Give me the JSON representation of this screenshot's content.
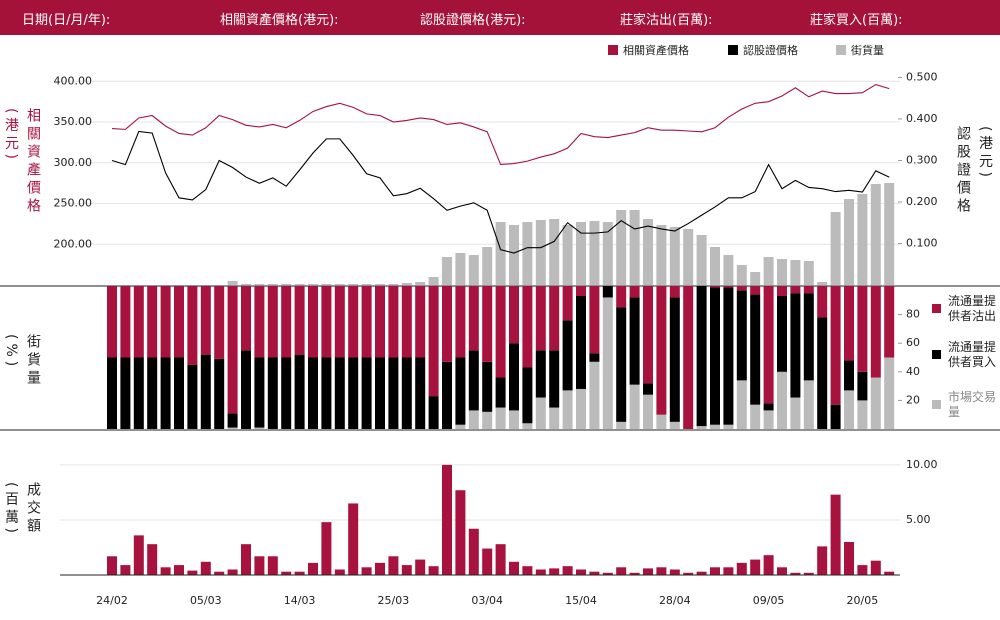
{
  "header": [
    "日期(日/月/年):",
    "相關資產價格(港元):",
    "認股證價格(港元):",
    "莊家沽出(百萬):",
    "莊家買入(百萬):"
  ],
  "chart_data": [
    {
      "type": "line",
      "y_label": "相關資產價格(港元)",
      "y2_label": "認股證價格(港元)",
      "ylim": [
        150,
        420
      ],
      "yticks": [
        {
          "value": 200,
          "label": "200.00"
        },
        {
          "value": 250,
          "label": "250.00"
        },
        {
          "value": 300,
          "label": "300.00"
        },
        {
          "value": 350,
          "label": "350.00"
        },
        {
          "value": 400,
          "label": "400.00"
        }
      ],
      "y2lim": [
        0,
        0.53
      ],
      "y2ticks": [
        {
          "value": 0.1,
          "label": "0.100"
        },
        {
          "value": 0.2,
          "label": "0.200"
        },
        {
          "value": 0.3,
          "label": "0.300"
        },
        {
          "value": 0.4,
          "label": "0.400"
        },
        {
          "value": 0.5,
          "label": "0.500"
        }
      ],
      "y3lim": [
        0,
        220
      ],
      "grid": true,
      "series": [
        {
          "name": "相關資產價格",
          "color": "#a8123e",
          "axis": "y",
          "values": [
            342,
            341,
            355,
            358,
            345,
            336,
            334,
            343,
            358,
            353,
            346,
            344,
            347,
            343,
            352,
            363,
            369,
            373,
            368,
            360,
            358,
            350,
            352,
            355,
            353,
            347,
            349,
            344,
            338,
            298,
            299,
            302,
            307,
            311,
            318,
            336,
            332,
            331,
            334,
            337,
            343,
            340,
            340,
            339,
            338,
            343,
            356,
            366,
            373,
            375,
            382,
            392,
            381,
            388,
            385,
            385,
            386,
            396,
            391
          ]
        },
        {
          "name": "認股證價格",
          "color": "#000000",
          "axis": "y2",
          "values": [
            0.3,
            0.29,
            0.37,
            0.366,
            0.27,
            0.21,
            0.205,
            0.23,
            0.3,
            0.283,
            0.26,
            0.245,
            0.258,
            0.238,
            0.277,
            0.318,
            0.352,
            0.352,
            0.312,
            0.268,
            0.258,
            0.215,
            0.22,
            0.233,
            0.208,
            0.18,
            0.19,
            0.198,
            0.18,
            0.085,
            0.077,
            0.09,
            0.09,
            0.105,
            0.15,
            0.125,
            0.125,
            0.128,
            0.155,
            0.135,
            0.142,
            0.135,
            0.13,
            0.148,
            0.168,
            0.188,
            0.21,
            0.21,
            0.225,
            0.29,
            0.232,
            0.252,
            0.235,
            0.232,
            0.225,
            0.228,
            0.224,
            0.275,
            0.26
          ]
        },
        {
          "name": "街貨量",
          "color": "#bbbbbb",
          "axis": "y3",
          "values": [
            0,
            0,
            0,
            0,
            0,
            0,
            0,
            0,
            0,
            4,
            1,
            1,
            1,
            1,
            1,
            1,
            1,
            1,
            1,
            1,
            1,
            1,
            2,
            3,
            8,
            28,
            32,
            30,
            38,
            63,
            60,
            63,
            65,
            66,
            60,
            63,
            64,
            63,
            75,
            75,
            66,
            60,
            58,
            56,
            50,
            38,
            30,
            20,
            13,
            28,
            26,
            25,
            24,
            3,
            73,
            86,
            91,
            101,
            102
          ]
        }
      ]
    },
    {
      "type": "stacked_bar",
      "y_label": "街貨量(%)",
      "ylim": [
        0,
        100
      ],
      "yticks": [
        20,
        40,
        60,
        80
      ],
      "series": [
        {
          "name": "流通量提供者沽出",
          "color": "#a8123e",
          "values": [
            50,
            50,
            50,
            50,
            50,
            50,
            55,
            48,
            51,
            89,
            45,
            50,
            50,
            50,
            48,
            50,
            50,
            50,
            50,
            50,
            50,
            50,
            50,
            50,
            77,
            53,
            50,
            45,
            53,
            64,
            40,
            57,
            45,
            45,
            24,
            7,
            47,
            0,
            15,
            8,
            68,
            90,
            8,
            100,
            0,
            1,
            1,
            3,
            6,
            82,
            7,
            5,
            5,
            22,
            83,
            52,
            60,
            64,
            50
          ]
        },
        {
          "name": "流通量提供者買入",
          "color": "#000000",
          "values": [
            50,
            50,
            50,
            50,
            50,
            50,
            45,
            52,
            49,
            10,
            55,
            49,
            50,
            50,
            52,
            50,
            50,
            50,
            50,
            50,
            50,
            50,
            50,
            50,
            23,
            47,
            47,
            42,
            35,
            21,
            47,
            39,
            33,
            40,
            49,
            65,
            6,
            8,
            80,
            61,
            8,
            0,
            87,
            0,
            98,
            96,
            96,
            63,
            77,
            5,
            53,
            73,
            61,
            78,
            17,
            21,
            20,
            0,
            0
          ]
        },
        {
          "name": "市場交易量",
          "color": "#bbbbbb",
          "values": [
            0,
            0,
            0,
            0,
            0,
            0,
            0,
            0,
            0,
            1,
            0,
            1,
            0,
            0,
            0,
            0,
            0,
            0,
            0,
            0,
            0,
            0,
            0,
            0,
            0,
            0,
            3,
            13,
            12,
            15,
            13,
            4,
            22,
            15,
            27,
            28,
            47,
            92,
            5,
            31,
            24,
            10,
            5,
            0,
            2,
            3,
            3,
            34,
            17,
            13,
            40,
            22,
            34,
            0,
            0,
            27,
            20,
            36,
            50
          ]
        }
      ]
    },
    {
      "type": "bar",
      "y_label": "成交額(百萬)",
      "color": "#a8123e",
      "ylim": [
        0,
        10.9
      ],
      "yticks": [
        {
          "value": 5,
          "label": "5.00"
        },
        {
          "value": 10,
          "label": "10.00"
        }
      ],
      "grid": true,
      "categories": [
        "24/02",
        null,
        null,
        null,
        null,
        null,
        null,
        "05/03",
        null,
        null,
        null,
        null,
        null,
        null,
        "14/03",
        null,
        null,
        null,
        null,
        null,
        null,
        "25/03",
        null,
        null,
        null,
        null,
        null,
        null,
        "03/04",
        null,
        null,
        null,
        null,
        null,
        null,
        "15/04",
        null,
        null,
        null,
        null,
        null,
        null,
        "28/04",
        null,
        null,
        null,
        null,
        null,
        null,
        "09/05",
        null,
        null,
        null,
        null,
        null,
        null,
        "20/05",
        null,
        null
      ],
      "values": [
        1.7,
        0.9,
        3.6,
        2.8,
        0.7,
        0.9,
        0.4,
        1.2,
        0.3,
        0.5,
        2.8,
        1.7,
        1.7,
        0.3,
        0.3,
        1.1,
        4.8,
        0.5,
        6.5,
        0.7,
        1.1,
        1.7,
        0.9,
        1.4,
        0.8,
        10.0,
        7.7,
        4.2,
        2.4,
        2.8,
        1.2,
        0.8,
        0.5,
        0.6,
        0.8,
        0.5,
        0.3,
        0.2,
        0.7,
        0.2,
        0.6,
        0.7,
        0.5,
        0.2,
        0.3,
        0.7,
        0.7,
        1.1,
        1.4,
        1.8,
        0.7,
        0.2,
        0.2,
        2.6,
        7.3,
        3.0,
        0.9,
        1.3,
        0.3
      ]
    }
  ]
}
